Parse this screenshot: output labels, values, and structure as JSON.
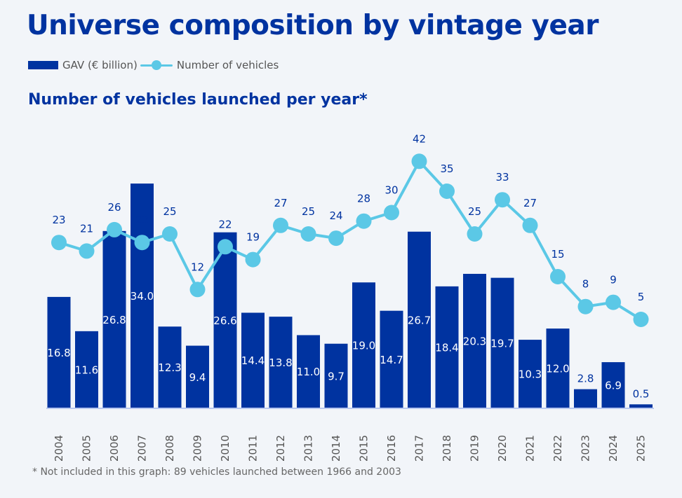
{
  "title": "Universe composition by vintage year",
  "legend": {
    "bar_label": "GAV (€ billion)",
    "line_label": "Number of vehicles"
  },
  "subtitle": "Number of vehicles launched per year*",
  "footnote": "* Not included in this graph: 89 vehicles launched between 1966 and 2003",
  "colors": {
    "bar": "#0033a0",
    "line": "#5bc8e6",
    "text": "#0033a0",
    "background": "#f2f5f9"
  },
  "chart_data": {
    "type": "bar+line",
    "categories": [
      "2004",
      "2005",
      "2006",
      "2007",
      "2008",
      "2009",
      "2010",
      "2011",
      "2012",
      "2013",
      "2014",
      "2015",
      "2016",
      "2017",
      "2018",
      "2019",
      "2020",
      "2021",
      "2022",
      "2023",
      "2024",
      "2025"
    ],
    "series": [
      {
        "name": "GAV (€ billion)",
        "type": "bar",
        "values": [
          16.8,
          11.6,
          26.8,
          34.0,
          12.3,
          9.4,
          26.6,
          14.4,
          13.8,
          11.0,
          9.7,
          19.0,
          14.7,
          26.7,
          18.4,
          20.3,
          19.7,
          10.3,
          12.0,
          2.8,
          6.9,
          0.5
        ]
      },
      {
        "name": "Number of vehicles",
        "type": "line",
        "values": [
          23,
          21,
          26,
          23,
          25,
          12,
          22,
          19,
          27,
          25,
          24,
          28,
          30,
          42,
          35,
          25,
          33,
          27,
          15,
          8,
          9,
          5
        ]
      }
    ],
    "grid": false,
    "legend_position": "top-left",
    "y_axis_visible": false
  }
}
